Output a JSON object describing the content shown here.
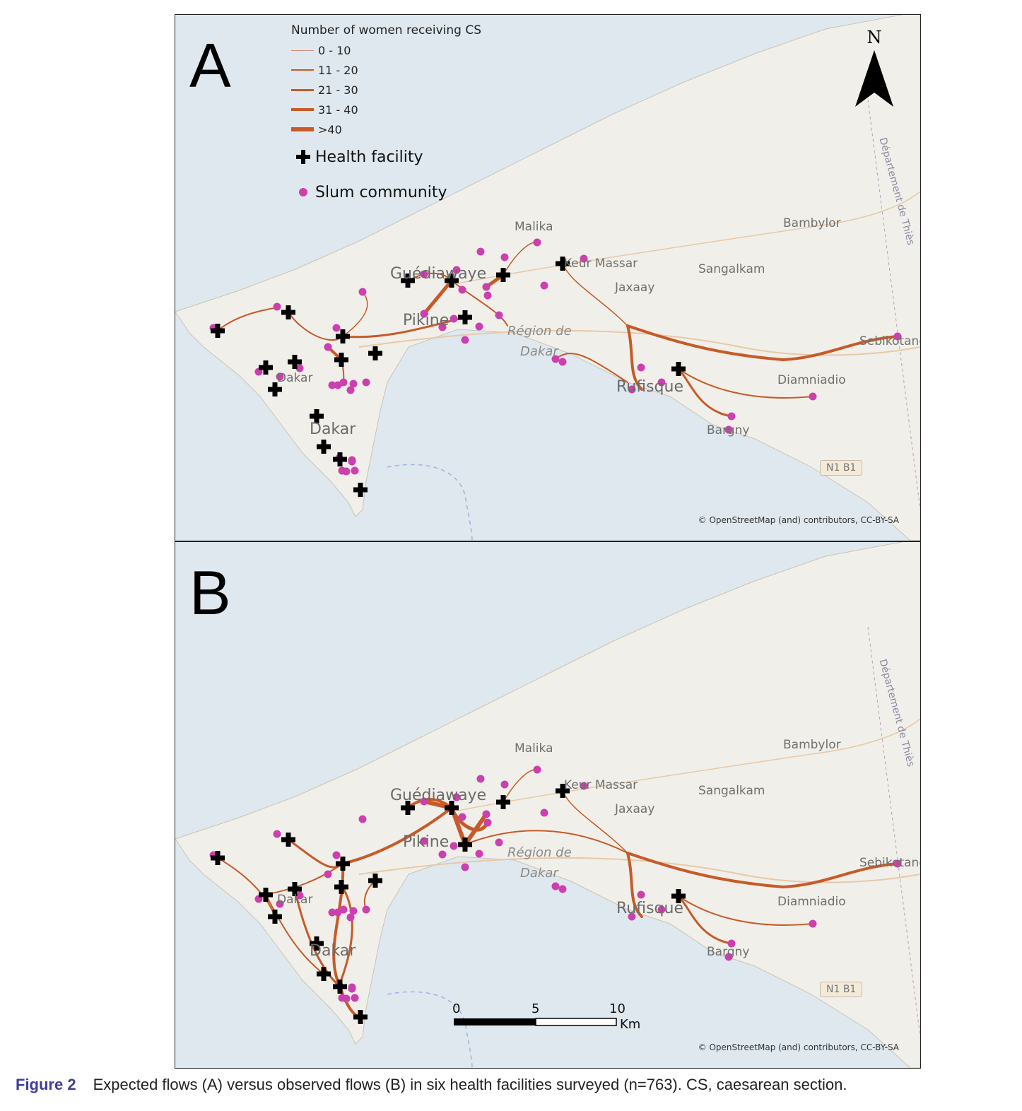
{
  "panels": [
    {
      "letter": "A",
      "credit": "© OpenStreetMap (and) contributors, CC-BY-SA"
    },
    {
      "letter": "B",
      "credit": "© OpenStreetMap (and) contributors, CC-BY-SA"
    }
  ],
  "legend": {
    "title": "Number of women receiving CS",
    "classes": [
      "0 - 10",
      "11 - 20",
      "21 - 30",
      "31 - 40",
      ">40"
    ],
    "health_facility": "Health facility",
    "slum_community": "Slum community"
  },
  "north_label": "N",
  "places": {
    "malika": "Malika",
    "bambylor": "Bambylor",
    "keur_massar": "Keur Massar",
    "sangalkam": "Sangalkam",
    "jaxaay": "Jaxaay",
    "guediawaye": "Guédiawaye",
    "pikine": "Pikine",
    "region": "Région de",
    "dakar_region": "Dakar",
    "dakar": "Dakar",
    "dakar_small": "Dakar",
    "rufisque": "Rufisque",
    "diamniadio": "Diamniadio",
    "bargny": "Bargny",
    "sebikotane": "Sebikotane",
    "thies": "Département de Thiès",
    "road_sign": "N1 B1"
  },
  "scale": {
    "ticks": [
      "0",
      "5",
      "10"
    ],
    "unit": "Km"
  },
  "caption": {
    "label": "Figure 2",
    "text": "Expected flows (A) versus observed flows (B) in six health facilities surveyed (n=763). CS, caesarean section."
  },
  "colors": {
    "flow": "#c65a28",
    "sea": "#dfe8ee",
    "land": "#f1efe9",
    "slum": "#cc3fae",
    "facility": "#000000"
  }
}
